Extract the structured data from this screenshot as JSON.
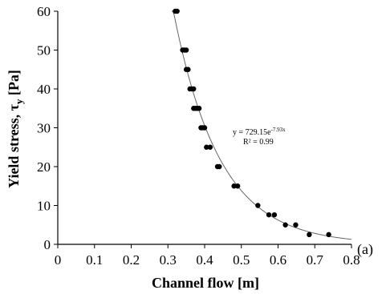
{
  "chart_data": {
    "type": "scatter",
    "xlabel": "Channel flow [m]",
    "ylabel_main": "Yield stress, τ",
    "ylabel_sub": "y",
    "ylabel_unit": " [Pa]",
    "xlim": [
      0,
      0.8
    ],
    "ylim": [
      0,
      60
    ],
    "xticks": [
      "0",
      "0.1",
      "0.2",
      "0.3",
      "0.4",
      "0.5",
      "0.6",
      "0.7",
      "0.8"
    ],
    "yticks": [
      "0",
      "10",
      "20",
      "30",
      "40",
      "50",
      "60"
    ],
    "grid": false,
    "colors": {
      "points": "#000000",
      "trendline": "#666666",
      "axes": "#000000"
    },
    "points": [
      {
        "x": 0.32,
        "y": 60
      },
      {
        "x": 0.325,
        "y": 60
      },
      {
        "x": 0.34,
        "y": 50
      },
      {
        "x": 0.345,
        "y": 50
      },
      {
        "x": 0.35,
        "y": 50
      },
      {
        "x": 0.35,
        "y": 45
      },
      {
        "x": 0.355,
        "y": 45
      },
      {
        "x": 0.36,
        "y": 40
      },
      {
        "x": 0.365,
        "y": 40
      },
      {
        "x": 0.37,
        "y": 40
      },
      {
        "x": 0.37,
        "y": 35
      },
      {
        "x": 0.375,
        "y": 35
      },
      {
        "x": 0.38,
        "y": 35
      },
      {
        "x": 0.385,
        "y": 35
      },
      {
        "x": 0.39,
        "y": 30
      },
      {
        "x": 0.395,
        "y": 30
      },
      {
        "x": 0.4,
        "y": 30
      },
      {
        "x": 0.405,
        "y": 25
      },
      {
        "x": 0.415,
        "y": 25
      },
      {
        "x": 0.435,
        "y": 20
      },
      {
        "x": 0.44,
        "y": 20
      },
      {
        "x": 0.48,
        "y": 15
      },
      {
        "x": 0.49,
        "y": 15
      },
      {
        "x": 0.545,
        "y": 10
      },
      {
        "x": 0.575,
        "y": 7.6
      },
      {
        "x": 0.59,
        "y": 7.6
      },
      {
        "x": 0.62,
        "y": 5
      },
      {
        "x": 0.648,
        "y": 5
      },
      {
        "x": 0.685,
        "y": 2.5
      },
      {
        "x": 0.738,
        "y": 2.5
      }
    ],
    "trendline": {
      "a": 729.15,
      "b": -7.93,
      "x_start": 0.31,
      "x_end": 0.8
    },
    "annotation": {
      "equation_base": "y = 729.15e",
      "equation_exp": "-7.93x",
      "r2": "R² = 0.99"
    },
    "panel_label": "(a)"
  }
}
